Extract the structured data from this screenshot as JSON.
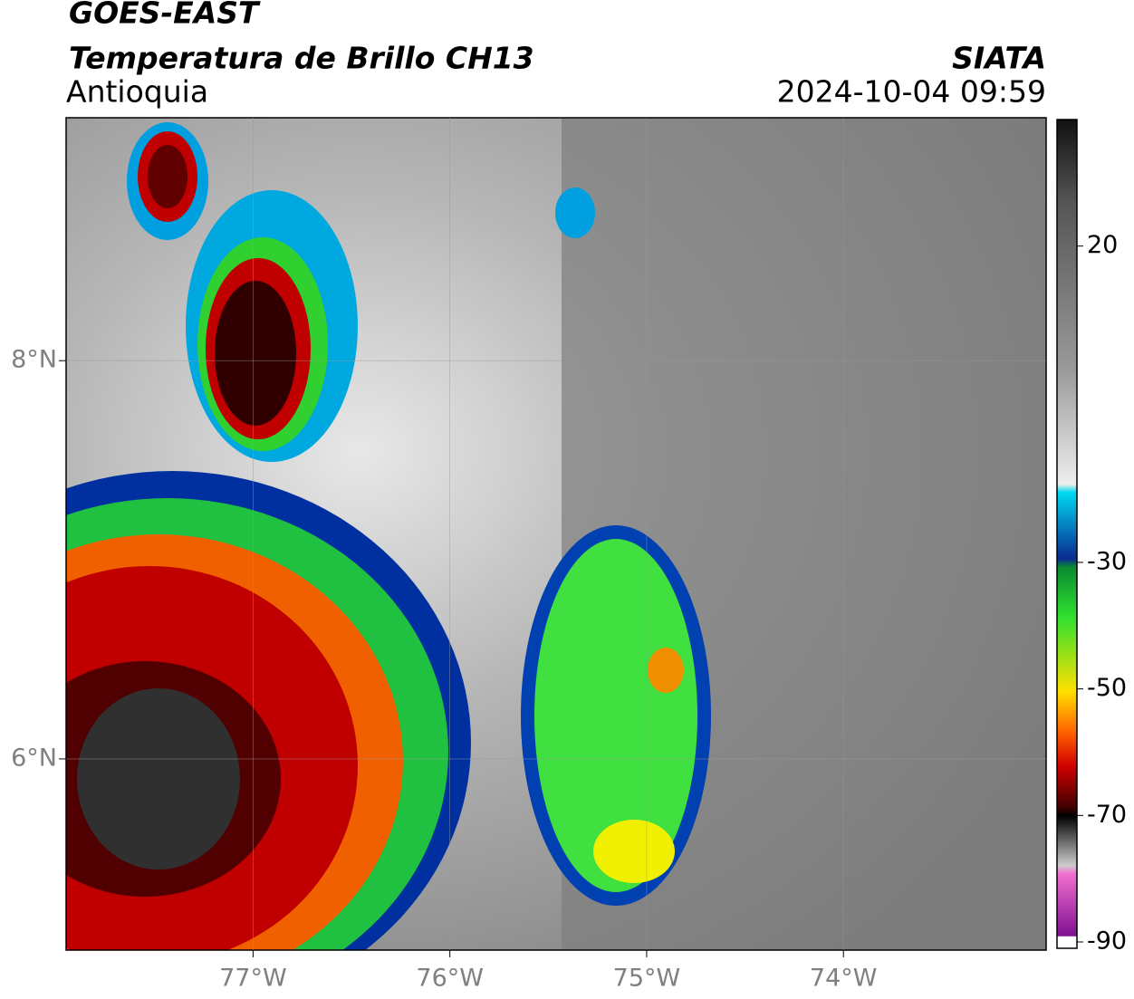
{
  "header": {
    "satellite": "GOES-EAST",
    "product": "Temperatura de Brillo CH13",
    "region": "Antioquia",
    "source": "SIATA",
    "timestamp": "2024-10-04 09:59"
  },
  "map": {
    "lonlim": [
      -77.95,
      -72.97
    ],
    "latlim": [
      5.04,
      9.22
    ],
    "lon_ticks": [
      {
        "value": -77,
        "label": "77°W"
      },
      {
        "value": -76,
        "label": "76°W"
      },
      {
        "value": -75,
        "label": "75°W"
      },
      {
        "value": -74,
        "label": "74°W"
      }
    ],
    "lat_ticks": [
      {
        "value": 8,
        "label": "8°N"
      },
      {
        "value": 6,
        "label": "6°N"
      }
    ]
  },
  "colorbar": {
    "range": [
      -91,
      40
    ],
    "ticks": [
      20,
      -30,
      -50,
      -70,
      -90
    ]
  }
}
